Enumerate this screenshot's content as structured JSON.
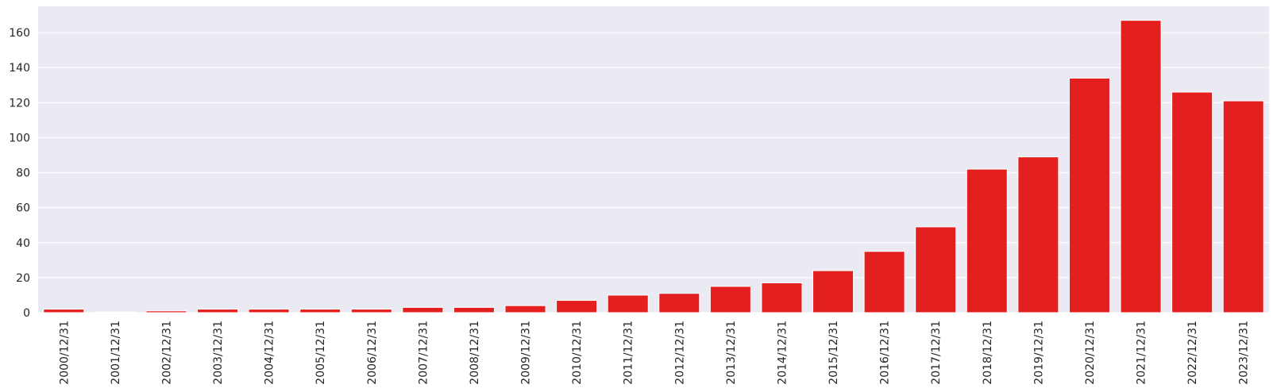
{
  "chart_data": {
    "type": "bar",
    "title": "",
    "xlabel": "",
    "ylabel": "",
    "categories": [
      "2000/12/31",
      "2001/12/31",
      "2002/12/31",
      "2003/12/31",
      "2004/12/31",
      "2005/12/31",
      "2006/12/31",
      "2007/12/31",
      "2008/12/31",
      "2009/12/31",
      "2010/12/31",
      "2011/12/31",
      "2012/12/31",
      "2013/12/31",
      "2014/12/31",
      "2015/12/31",
      "2016/12/31",
      "2017/12/31",
      "2018/12/31",
      "2019/12/31",
      "2020/12/31",
      "2021/12/31",
      "2022/12/31",
      "2023/12/31"
    ],
    "values": [
      2,
      0,
      1,
      2,
      2,
      2,
      2,
      3,
      3,
      4,
      7,
      10,
      11,
      15,
      17,
      24,
      35,
      49,
      82,
      89,
      134,
      167,
      126,
      121
    ],
    "ylim": [
      0,
      175
    ],
    "yticks": [
      0,
      20,
      40,
      60,
      80,
      100,
      120,
      140,
      160
    ],
    "ytick_labels": [
      "0",
      "20",
      "40",
      "60",
      "80",
      "100",
      "120",
      "140",
      "160"
    ],
    "grid": true,
    "bar_color": "#e41f1f",
    "background_color": "#eaeaf2",
    "legend": "none"
  }
}
